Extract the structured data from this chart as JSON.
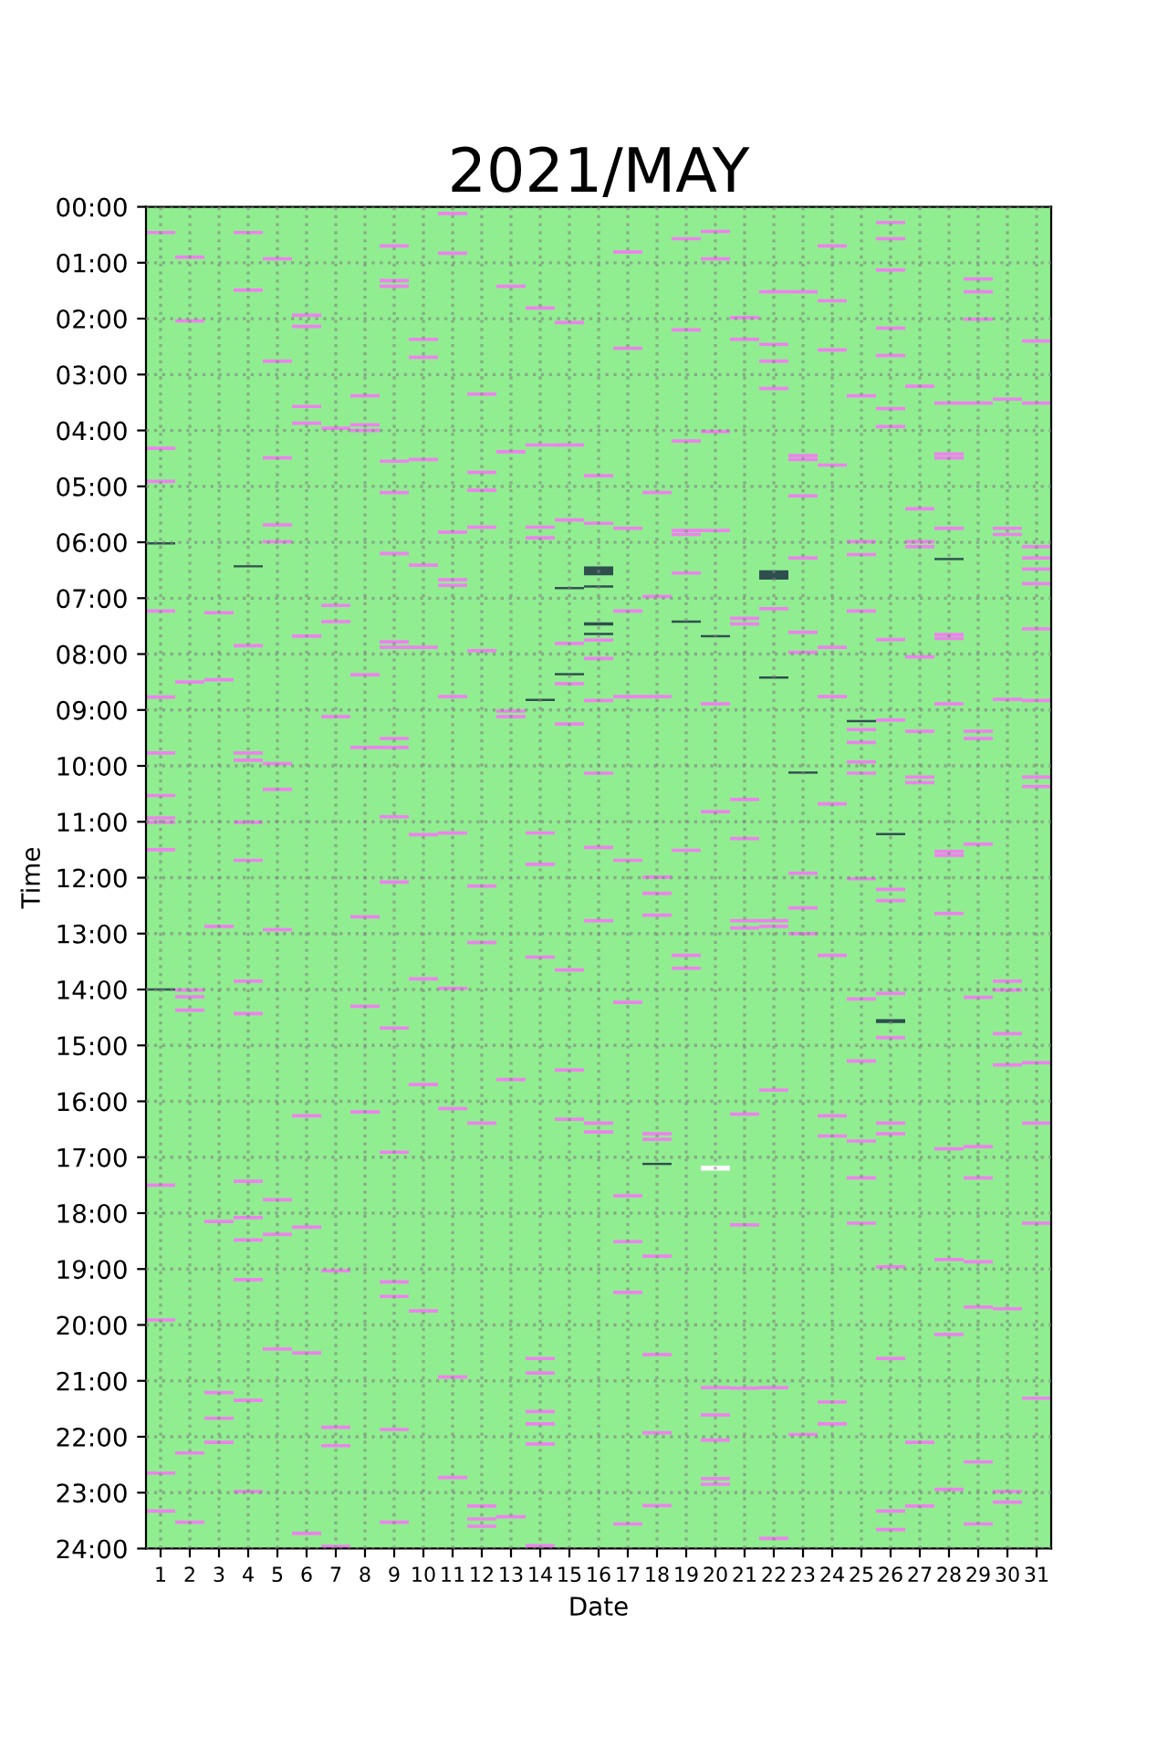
{
  "chart_data": {
    "type": "bar",
    "title": "2021/MAY",
    "xlabel": "Date",
    "ylabel": "Time",
    "x": [
      1,
      2,
      3,
      4,
      5,
      6,
      7,
      8,
      9,
      10,
      11,
      12,
      13,
      14,
      15,
      16,
      17,
      18,
      19,
      20,
      21,
      22,
      23,
      24,
      25,
      26,
      27,
      28,
      29,
      30,
      31
    ],
    "xlim": [
      0.5,
      31.5
    ],
    "xticks": [
      1,
      2,
      3,
      4,
      5,
      6,
      7,
      8,
      9,
      10,
      11,
      12,
      13,
      14,
      15,
      16,
      17,
      18,
      19,
      20,
      21,
      22,
      23,
      24,
      25,
      26,
      27,
      28,
      29,
      30,
      31
    ],
    "ylim": [
      24,
      0
    ],
    "yticks": [
      {
        "value": 0,
        "label": "00:00"
      },
      {
        "value": 1,
        "label": "01:00"
      },
      {
        "value": 2,
        "label": "02:00"
      },
      {
        "value": 3,
        "label": "03:00"
      },
      {
        "value": 4,
        "label": "04:00"
      },
      {
        "value": 5,
        "label": "05:00"
      },
      {
        "value": 6,
        "label": "06:00"
      },
      {
        "value": 7,
        "label": "07:00"
      },
      {
        "value": 8,
        "label": "08:00"
      },
      {
        "value": 9,
        "label": "09:00"
      },
      {
        "value": 10,
        "label": "10:00"
      },
      {
        "value": 11,
        "label": "11:00"
      },
      {
        "value": 12,
        "label": "12:00"
      },
      {
        "value": 13,
        "label": "13:00"
      },
      {
        "value": 14,
        "label": "14:00"
      },
      {
        "value": 15,
        "label": "15:00"
      },
      {
        "value": 16,
        "label": "16:00"
      },
      {
        "value": 17,
        "label": "17:00"
      },
      {
        "value": 18,
        "label": "18:00"
      },
      {
        "value": 19,
        "label": "19:00"
      },
      {
        "value": 20,
        "label": "20:00"
      },
      {
        "value": 21,
        "label": "21:00"
      },
      {
        "value": 22,
        "label": "22:00"
      },
      {
        "value": 23,
        "label": "23:00"
      },
      {
        "value": 24,
        "label": "24:00"
      }
    ],
    "grid": true,
    "bands": [
      {
        "axis": "x",
        "from": 0.5,
        "to": 31.5,
        "color": "#90ee90"
      }
    ],
    "series": [
      {
        "color": "#ee82ee",
        "base": [
          0.43,
          0.87,
          7.23,
          0.43,
          0.9,
          1.91,
          3.93,
          3.35,
          0.67,
          2.34,
          0.09,
          3.32,
          1.39,
          1.78,
          2.04,
          4.78,
          0.78,
          5.08,
          0.54,
          0.41,
          1.95,
          1.49,
          1.49,
          0.67,
          3.35,
          0.25,
          3.18,
          3.48,
          1.26,
          3.41,
          2.37
        ],
        "values": [
          0.06,
          0.06,
          0.06,
          0.06,
          0.06,
          0.06,
          0.06,
          0.06,
          0.06,
          0.06,
          0.06,
          0.06,
          0.06,
          0.06,
          0.06,
          0.06,
          0.06,
          0.06,
          0.06,
          0.06,
          0.06,
          0.06,
          0.06,
          0.06,
          0.06,
          0.06,
          0.06,
          0.06,
          0.06,
          0.06,
          0.06
        ]
      },
      {
        "color": "#ee82ee",
        "base": [
          4.29,
          2.01,
          8.43,
          1.46,
          2.73,
          2.11,
          7.1,
          3.87,
          1.29,
          2.66,
          0.8,
          4.72,
          4.35,
          4.23,
          4.23,
          5.63,
          2.5,
          6.94,
          2.17,
          0.9,
          2.34,
          2.43,
          4.42,
          1.65,
          5.96,
          0.54,
          5.37,
          4.39,
          1.49,
          5.72,
          3.48
        ],
        "values": [
          0.06,
          0.06,
          0.06,
          0.06,
          0.06,
          0.06,
          0.06,
          0.06,
          0.06,
          0.06,
          0.06,
          0.06,
          0.06,
          0.06,
          0.06,
          0.06,
          0.06,
          0.06,
          0.06,
          0.06,
          0.06,
          0.06,
          0.06,
          0.06,
          0.06,
          0.06,
          0.06,
          0.06,
          0.06,
          0.06,
          0.06
        ]
      },
      {
        "color": "#ee82ee",
        "base": [
          4.88,
          8.47,
          12.84,
          7.82,
          4.46,
          3.54,
          7.39,
          3.97,
          1.39,
          4.49,
          5.79,
          5.04,
          8.99,
          5.7,
          5.57,
          7.72,
          5.72,
          8.73,
          4.16,
          3.99,
          7.33,
          2.73,
          4.49,
          2.53,
          6.19,
          1.1,
          5.96,
          4.46,
          1.98,
          5.83,
          6.05
        ],
        "values": [
          0.06,
          0.06,
          0.06,
          0.06,
          0.06,
          0.06,
          0.06,
          0.06,
          0.06,
          0.06,
          0.06,
          0.06,
          0.06,
          0.06,
          0.06,
          0.06,
          0.06,
          0.06,
          0.06,
          0.06,
          0.06,
          0.06,
          0.06,
          0.06,
          0.06,
          0.06,
          0.06,
          0.06,
          0.06,
          0.06,
          0.06
        ]
      },
      {
        "color": "#ee82ee",
        "base": [
          7.2,
          13.98,
          18.12,
          9.74,
          5.66,
          3.84,
          9.09,
          8.34,
          4.52,
          6.38,
          6.64,
          5.7,
          9.09,
          5.89,
          7.78,
          8.05,
          7.2,
          11.96,
          5.76,
          5.76,
          7.43,
          3.22,
          5.14,
          4.59,
          7.2,
          2.14,
          6.05,
          5.72,
          3.48,
          8.78,
          6.25
        ],
        "values": [
          0.06,
          0.06,
          0.06,
          0.06,
          0.06,
          0.06,
          0.06,
          0.06,
          0.06,
          0.06,
          0.06,
          0.06,
          0.06,
          0.06,
          0.06,
          0.06,
          0.06,
          0.06,
          0.06,
          0.06,
          0.06,
          0.06,
          0.06,
          0.06,
          0.06,
          0.06,
          0.06,
          0.06,
          0.06,
          0.06,
          0.06
        ]
      },
      {
        "color": "#ee82ee",
        "base": [
          8.74,
          14.1,
          21.18,
          9.87,
          5.96,
          7.65,
          19.0,
          9.64,
          5.08,
          7.85,
          6.74,
          7.91,
          15.58,
          11.17,
          8.5,
          8.8,
          8.73,
          12.25,
          5.83,
          8.86,
          10.57,
          7.16,
          6.25,
          7.85,
          9.32,
          2.63,
          8.02,
          7.62,
          9.35,
          13.82,
          6.45
        ],
        "values": [
          0.06,
          0.06,
          0.06,
          0.06,
          0.06,
          0.06,
          0.06,
          0.06,
          0.06,
          0.06,
          0.06,
          0.06,
          0.06,
          0.06,
          0.06,
          0.06,
          0.06,
          0.06,
          0.06,
          0.06,
          0.06,
          0.06,
          0.06,
          0.06,
          0.06,
          0.06,
          0.06,
          0.06,
          0.06,
          0.06,
          0.06
        ]
      },
      {
        "color": "#ee82ee",
        "base": [
          9.74,
          14.34,
          21.64,
          10.98,
          9.93,
          16.23,
          21.8,
          12.67,
          6.17,
          11.2,
          8.73,
          12.12,
          23.4,
          11.73,
          9.22,
          10.1,
          11.66,
          12.64,
          6.52,
          10.79,
          11.27,
          12.74,
          7.58,
          8.73,
          9.55,
          3.58,
          9.35,
          7.69,
          9.48,
          13.98,
          6.71
        ],
        "values": [
          0.06,
          0.06,
          0.06,
          0.06,
          0.06,
          0.06,
          0.06,
          0.06,
          0.06,
          0.06,
          0.06,
          0.06,
          0.06,
          0.06,
          0.06,
          0.06,
          0.06,
          0.06,
          0.06,
          0.06,
          0.06,
          0.06,
          0.06,
          0.06,
          0.06,
          0.06,
          0.06,
          0.06,
          0.06,
          0.06,
          0.06
        ]
      },
      {
        "color": "#ee82ee",
        "base": [
          10.5,
          22.26,
          22.07,
          11.66,
          10.39,
          18.22,
          22.13,
          14.27,
          7.75,
          13.78,
          11.17,
          13.13,
          null,
          13.39,
          13.62,
          11.43,
          14.2,
          16.55,
          11.48,
          21.09,
          12.74,
          12.84,
          7.94,
          10.65,
          9.9,
          3.9,
          10.17,
          8.86,
          11.37,
          14.76,
          7.52
        ],
        "values": [
          0.06,
          0.06,
          0.06,
          0.06,
          0.06,
          0.06,
          0.06,
          0.06,
          0.06,
          0.06,
          0.06,
          0.06,
          null,
          0.06,
          0.06,
          0.06,
          0.06,
          0.06,
          0.06,
          0.06,
          0.06,
          0.06,
          0.06,
          0.06,
          0.06,
          0.06,
          0.06,
          0.06,
          0.06,
          0.06,
          0.06
        ]
      },
      {
        "color": "#ee82ee",
        "base": [
          10.9,
          23.5,
          null,
          13.82,
          12.9,
          20.47,
          23.93,
          16.16,
          7.85,
          15.67,
          13.95,
          16.36,
          null,
          20.57,
          15.41,
          12.74,
          17.66,
          16.65,
          13.36,
          21.58,
          12.87,
          15.77,
          11.89,
          13.36,
          10.1,
          7.71,
          10.27,
          11.5,
          14.11,
          15.32,
          8.8
        ],
        "values": [
          0.06,
          0.06,
          null,
          0.06,
          0.06,
          0.06,
          0.06,
          0.06,
          0.06,
          0.06,
          0.06,
          0.06,
          null,
          0.06,
          0.06,
          0.06,
          0.06,
          0.06,
          0.06,
          0.06,
          0.06,
          0.06,
          0.06,
          0.06,
          0.06,
          0.06,
          0.06,
          0.06,
          0.06,
          0.06,
          0.06
        ]
      },
      {
        "color": "#ee82ee",
        "base": [
          10.98,
          null,
          null,
          14.4,
          17.73,
          23.7,
          null,
          null,
          9.48,
          19.72,
          16.1,
          23.21,
          null,
          20.83,
          16.29,
          16.36,
          18.48,
          18.74,
          13.59,
          22.03,
          16.2,
          21.09,
          12.51,
          16.23,
          11.99,
          9.15,
          22.07,
          11.57,
          16.78,
          19.68,
          10.17
        ],
        "values": [
          0.06,
          null,
          null,
          0.06,
          0.06,
          0.06,
          null,
          null,
          0.06,
          0.06,
          0.06,
          0.06,
          null,
          0.06,
          0.06,
          0.06,
          0.06,
          0.06,
          0.06,
          0.06,
          0.06,
          0.06,
          0.06,
          0.06,
          0.06,
          0.06,
          0.06,
          0.06,
          0.06,
          0.06,
          0.06
        ]
      },
      {
        "color": "#ee82ee",
        "base": [
          11.47,
          null,
          null,
          17.4,
          18.35,
          null,
          null,
          null,
          9.64,
          null,
          20.9,
          23.44,
          null,
          21.52,
          null,
          16.52,
          19.39,
          20.5,
          null,
          22.72,
          18.18,
          23.79,
          12.97,
          16.59,
          14.14,
          12.18,
          23.21,
          12.61,
          17.34,
          22.95,
          10.34
        ],
        "values": [
          0.06,
          null,
          null,
          0.06,
          0.06,
          null,
          null,
          null,
          0.06,
          null,
          0.06,
          0.06,
          null,
          0.06,
          null,
          0.06,
          0.06,
          0.06,
          null,
          0.06,
          0.06,
          0.06,
          0.06,
          0.06,
          0.06,
          0.06,
          0.06,
          0.06,
          0.06,
          0.06,
          0.06
        ]
      },
      {
        "color": "#ee82ee",
        "base": [
          17.47,
          null,
          null,
          18.05,
          20.4,
          null,
          null,
          null,
          10.88,
          null,
          22.7,
          23.57,
          null,
          21.74,
          null,
          null,
          23.53,
          21.9,
          null,
          22.82,
          21.1,
          null,
          21.93,
          21.35,
          15.25,
          12.38,
          null,
          16.82,
          18.84,
          23.14,
          15.28
        ],
        "values": [
          0.06,
          null,
          null,
          0.06,
          0.06,
          null,
          null,
          null,
          0.06,
          null,
          0.06,
          0.06,
          null,
          0.06,
          null,
          null,
          0.06,
          0.06,
          null,
          0.06,
          0.06,
          null,
          0.06,
          0.06,
          0.06,
          0.06,
          null,
          0.06,
          0.06,
          0.06,
          0.06
        ]
      },
      {
        "color": "#ee82ee",
        "base": [
          19.88,
          null,
          null,
          18.45,
          null,
          null,
          null,
          null,
          12.05,
          null,
          null,
          null,
          null,
          22.1,
          null,
          null,
          null,
          23.2,
          null,
          null,
          null,
          null,
          null,
          21.74,
          16.68,
          14.04,
          null,
          18.8,
          19.65,
          null,
          16.36
        ],
        "values": [
          0.06,
          null,
          null,
          0.06,
          null,
          null,
          null,
          null,
          0.06,
          null,
          null,
          null,
          null,
          0.06,
          null,
          null,
          null,
          0.06,
          null,
          null,
          null,
          null,
          null,
          0.06,
          0.06,
          0.06,
          null,
          0.06,
          0.06,
          null,
          0.06
        ]
      },
      {
        "color": "#ee82ee",
        "base": [
          22.62,
          null,
          null,
          19.16,
          null,
          null,
          null,
          null,
          14.66,
          null,
          null,
          null,
          null,
          23.92,
          null,
          null,
          null,
          null,
          null,
          null,
          null,
          null,
          null,
          null,
          17.34,
          14.83,
          null,
          20.14,
          22.42,
          null,
          18.15
        ],
        "values": [
          0.06,
          null,
          null,
          0.06,
          null,
          null,
          null,
          null,
          0.06,
          null,
          null,
          null,
          null,
          0.06,
          null,
          null,
          null,
          null,
          null,
          null,
          null,
          null,
          null,
          null,
          0.06,
          0.06,
          null,
          0.06,
          0.06,
          null,
          0.06
        ]
      },
      {
        "color": "#ee82ee",
        "base": [
          23.3,
          null,
          null,
          21.32,
          null,
          null,
          null,
          null,
          16.88,
          null,
          null,
          null,
          null,
          null,
          null,
          null,
          null,
          null,
          null,
          null,
          null,
          null,
          null,
          null,
          18.15,
          16.36,
          null,
          22.91,
          23.53,
          null,
          21.28
        ],
        "values": [
          0.06,
          null,
          null,
          0.06,
          null,
          null,
          null,
          null,
          0.06,
          null,
          null,
          null,
          null,
          null,
          null,
          null,
          null,
          null,
          null,
          null,
          null,
          null,
          null,
          null,
          0.06,
          0.06,
          null,
          0.06,
          0.06,
          null,
          0.06
        ]
      },
      {
        "color": "#ee82ee",
        "base": [
          null,
          null,
          null,
          22.95,
          null,
          null,
          null,
          null,
          19.2,
          null,
          null,
          null,
          null,
          null,
          null,
          null,
          null,
          null,
          null,
          null,
          null,
          null,
          null,
          null,
          null,
          16.55,
          null,
          null,
          null,
          null,
          null
        ],
        "values": [
          null,
          null,
          null,
          0.06,
          null,
          null,
          null,
          null,
          0.06,
          null,
          null,
          null,
          null,
          null,
          null,
          null,
          null,
          null,
          null,
          null,
          null,
          null,
          null,
          null,
          null,
          0.06,
          null,
          null,
          null,
          null,
          null
        ]
      },
      {
        "color": "#ee82ee",
        "base": [
          null,
          null,
          null,
          null,
          null,
          null,
          null,
          null,
          19.46,
          null,
          null,
          null,
          null,
          null,
          null,
          null,
          null,
          null,
          null,
          null,
          null,
          null,
          null,
          null,
          null,
          18.93,
          null,
          null,
          null,
          null,
          null
        ],
        "values": [
          null,
          null,
          null,
          null,
          null,
          null,
          null,
          null,
          0.06,
          null,
          null,
          null,
          null,
          null,
          null,
          null,
          null,
          null,
          null,
          null,
          null,
          null,
          null,
          null,
          null,
          0.06,
          null,
          null,
          null,
          null,
          null
        ]
      },
      {
        "color": "#ee82ee",
        "base": [
          null,
          null,
          null,
          null,
          null,
          null,
          null,
          null,
          21.84,
          null,
          null,
          null,
          null,
          null,
          null,
          null,
          null,
          null,
          null,
          null,
          null,
          null,
          null,
          null,
          null,
          20.57,
          null,
          null,
          null,
          null,
          null
        ],
        "values": [
          null,
          null,
          null,
          null,
          null,
          null,
          null,
          null,
          0.06,
          null,
          null,
          null,
          null,
          null,
          null,
          null,
          null,
          null,
          null,
          null,
          null,
          null,
          null,
          null,
          null,
          0.06,
          null,
          null,
          null,
          null,
          null
        ]
      },
      {
        "color": "#ee82ee",
        "base": [
          null,
          null,
          null,
          null,
          null,
          null,
          null,
          null,
          23.5,
          null,
          null,
          null,
          null,
          null,
          null,
          null,
          null,
          null,
          null,
          null,
          null,
          null,
          null,
          null,
          null,
          23.3,
          null,
          null,
          null,
          null,
          null
        ],
        "values": [
          null,
          null,
          null,
          null,
          null,
          null,
          null,
          null,
          0.06,
          null,
          null,
          null,
          null,
          null,
          null,
          null,
          null,
          null,
          null,
          null,
          null,
          null,
          null,
          null,
          null,
          0.06,
          null,
          null,
          null,
          null,
          null
        ]
      },
      {
        "color": "#ee82ee",
        "base": [
          null,
          null,
          null,
          null,
          null,
          null,
          null,
          null,
          null,
          null,
          null,
          null,
          null,
          null,
          null,
          null,
          null,
          null,
          null,
          null,
          null,
          null,
          null,
          null,
          null,
          23.63,
          null,
          null,
          null,
          null,
          null
        ],
        "values": [
          null,
          null,
          null,
          null,
          null,
          null,
          null,
          null,
          null,
          null,
          null,
          null,
          null,
          null,
          null,
          null,
          null,
          null,
          null,
          null,
          null,
          null,
          null,
          null,
          null,
          0.06,
          null,
          null,
          null,
          null,
          null
        ]
      },
      {
        "color": "#2f4f4f",
        "base": [
          6.0,
          null,
          null,
          6.41,
          null,
          null,
          null,
          null,
          null,
          null,
          null,
          null,
          null,
          8.8,
          6.8,
          6.43,
          null,
          17.1,
          7.4,
          7.66,
          null,
          6.5,
          10.1,
          null,
          9.18,
          11.2,
          null,
          6.28,
          null,
          null,
          null
        ],
        "values": [
          0.04,
          null,
          null,
          0.04,
          null,
          null,
          null,
          null,
          null,
          null,
          null,
          null,
          null,
          0.04,
          0.04,
          0.16,
          null,
          0.04,
          0.04,
          0.04,
          null,
          0.17,
          0.04,
          null,
          0.04,
          0.04,
          null,
          0.04,
          null,
          null,
          null
        ]
      },
      {
        "color": "#2f4f4f",
        "base": [
          13.98,
          null,
          null,
          null,
          null,
          null,
          null,
          null,
          null,
          null,
          null,
          null,
          null,
          null,
          8.34,
          6.77,
          null,
          null,
          null,
          null,
          null,
          8.4,
          null,
          null,
          null,
          14.53,
          null,
          null,
          null,
          null,
          null
        ],
        "values": [
          0.04,
          null,
          null,
          null,
          null,
          null,
          null,
          null,
          null,
          null,
          null,
          null,
          null,
          null,
          0.04,
          0.04,
          null,
          null,
          null,
          null,
          null,
          0.04,
          null,
          null,
          null,
          0.07,
          null,
          null,
          null,
          null,
          null
        ]
      },
      {
        "color": "#2f4f4f",
        "base": [
          null,
          null,
          null,
          null,
          null,
          null,
          null,
          null,
          null,
          null,
          null,
          null,
          null,
          null,
          null,
          7.43,
          null,
          null,
          null,
          null,
          null,
          null,
          null,
          null,
          null,
          null,
          null,
          null,
          null,
          null,
          null
        ],
        "values": [
          null,
          null,
          null,
          null,
          null,
          null,
          null,
          null,
          null,
          null,
          null,
          null,
          null,
          null,
          null,
          0.06,
          null,
          null,
          null,
          null,
          null,
          null,
          null,
          null,
          null,
          null,
          null,
          null,
          null,
          null,
          null
        ]
      },
      {
        "color": "#2f4f4f",
        "base": [
          null,
          null,
          null,
          null,
          null,
          null,
          null,
          null,
          null,
          null,
          null,
          null,
          null,
          null,
          null,
          7.62,
          null,
          null,
          null,
          null,
          null,
          null,
          null,
          null,
          null,
          null,
          null,
          null,
          null,
          null,
          null
        ],
        "values": [
          null,
          null,
          null,
          null,
          null,
          null,
          null,
          null,
          null,
          null,
          null,
          null,
          null,
          null,
          null,
          0.04,
          null,
          null,
          null,
          null,
          null,
          null,
          null,
          null,
          null,
          null,
          null,
          null,
          null,
          null,
          null
        ]
      },
      {
        "color": "#ffffff",
        "base": [
          null,
          null,
          null,
          null,
          null,
          null,
          null,
          null,
          null,
          null,
          null,
          null,
          null,
          null,
          null,
          null,
          null,
          null,
          null,
          17.15,
          null,
          null,
          null,
          null,
          null,
          null,
          null,
          null,
          null,
          null,
          null
        ],
        "values": [
          null,
          null,
          null,
          null,
          null,
          null,
          null,
          null,
          null,
          null,
          null,
          null,
          null,
          null,
          null,
          null,
          null,
          null,
          null,
          0.09,
          null,
          null,
          null,
          null,
          null,
          null,
          null,
          null,
          null,
          null,
          null
        ]
      }
    ]
  }
}
